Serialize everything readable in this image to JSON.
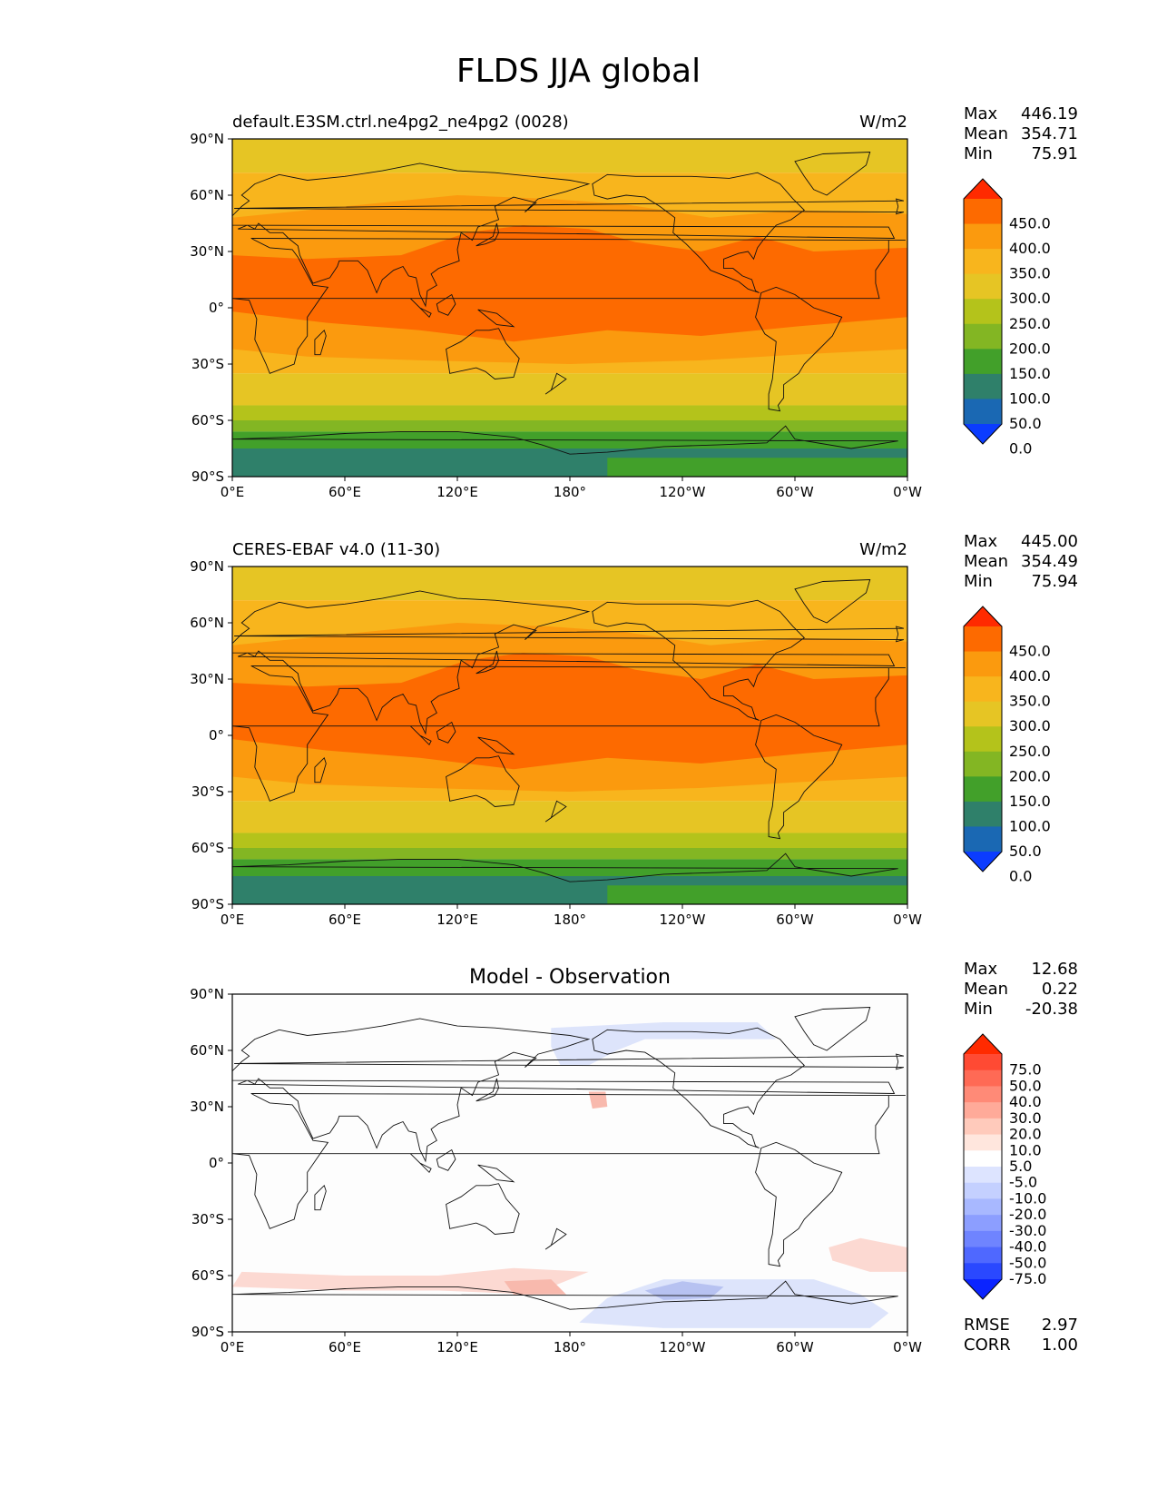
{
  "title": "FLDS JJA global",
  "x_ticks": [
    "0°E",
    "60°E",
    "120°E",
    "180°",
    "120°W",
    "60°W",
    "0°W"
  ],
  "y_ticks": [
    "90°N",
    "60°N",
    "30°N",
    "0°",
    "30°S",
    "60°S",
    "90°S"
  ],
  "panels": [
    {
      "id": "model",
      "left_title": "default.E3SM.ctrl.ne4pg2_ne4pg2 (0028)",
      "center_title": "",
      "right_title": "W/m2",
      "stats": [
        {
          "label": "Max",
          "value": "446.19"
        },
        {
          "label": "Mean",
          "value": "354.71"
        },
        {
          "label": "Min",
          "value": "75.91"
        }
      ],
      "colorbar": {
        "labels": [
          "450.0",
          "400.0",
          "350.0",
          "300.0",
          "250.0",
          "200.0",
          "150.0",
          "100.0",
          "50.0",
          "0.0"
        ],
        "colors": [
          "#ff2a00",
          "#fd6a00",
          "#fb9a0e",
          "#f8b51d",
          "#e6c524",
          "#b4c31b",
          "#83b623",
          "#42a02a",
          "#2f806a",
          "#1a68b3",
          "#0b3cff"
        ]
      }
    },
    {
      "id": "obs",
      "left_title": "CERES-EBAF v4.0 (11-30)",
      "center_title": "",
      "right_title": "W/m2",
      "stats": [
        {
          "label": "Max",
          "value": "445.00"
        },
        {
          "label": "Mean",
          "value": "354.49"
        },
        {
          "label": "Min",
          "value": "75.94"
        }
      ],
      "colorbar": {
        "labels": [
          "450.0",
          "400.0",
          "350.0",
          "300.0",
          "250.0",
          "200.0",
          "150.0",
          "100.0",
          "50.0",
          "0.0"
        ],
        "colors": [
          "#ff2a00",
          "#fd6a00",
          "#fb9a0e",
          "#f8b51d",
          "#e6c524",
          "#b4c31b",
          "#83b623",
          "#42a02a",
          "#2f806a",
          "#1a68b3",
          "#0b3cff"
        ]
      }
    },
    {
      "id": "diff",
      "left_title": "",
      "center_title": "Model - Observation",
      "right_title": "",
      "stats": [
        {
          "label": "Max",
          "value": "12.68"
        },
        {
          "label": "Mean",
          "value": "0.22"
        },
        {
          "label": "Min",
          "value": "-20.38"
        }
      ],
      "extra_stats": [
        {
          "label": "RMSE",
          "value": "2.97"
        },
        {
          "label": "CORR",
          "value": "1.00"
        }
      ],
      "colorbar": {
        "labels": [
          "75.0",
          "50.0",
          "40.0",
          "30.0",
          "20.0",
          "10.0",
          "5.0",
          "-5.0",
          "-10.0",
          "-20.0",
          "-30.0",
          "-40.0",
          "-50.0",
          "-75.0"
        ],
        "colors": [
          "#ff2a00",
          "#ff4a33",
          "#ff6a55",
          "#ff8a77",
          "#ffaa99",
          "#ffcabb",
          "#ffe6dd",
          "#ffffff",
          "#dde4ff",
          "#c4d0ff",
          "#a8b8ff",
          "#8c9eff",
          "#6f84ff",
          "#4f68ff",
          "#2a48ff",
          "#0b24ff"
        ]
      }
    }
  ],
  "map_colors": {
    "sea_high": "#fd6a00",
    "mid": "#fb9a0e",
    "temperate": "#f8b51d",
    "arctic": "#e6c524",
    "sub_antarctic": "#b4c31b",
    "antarctic_edge": "#83b623",
    "antarctic": "#42a02a",
    "antarctic_deep": "#2f806a",
    "coast": "#111111",
    "diff_neutral": "#fdfdfd",
    "diff_pos": "#fcd9d2",
    "diff_pos_strong": "#f8b9ad",
    "diff_neg": "#dde4fb",
    "diff_neg_strong": "#b7c2f1"
  }
}
